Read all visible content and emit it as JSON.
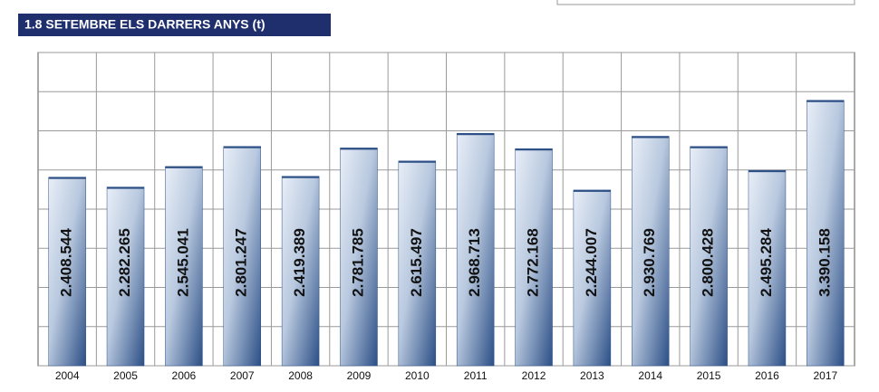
{
  "chart_data": {
    "type": "bar",
    "title": "1.8 SETEMBRE ELS DARRERS ANYS (t)",
    "categories": [
      "2004",
      "2005",
      "2006",
      "2007",
      "2008",
      "2009",
      "2010",
      "2011",
      "2012",
      "2013",
      "2014",
      "2015",
      "2016",
      "2017"
    ],
    "values": [
      2408544,
      2282265,
      2545041,
      2801247,
      2419389,
      2781785,
      2615497,
      2968713,
      2772168,
      2244007,
      2930769,
      2800428,
      2495284,
      3390158
    ],
    "value_labels": [
      "2.408.544",
      "2.282.265",
      "2.545.041",
      "2.801.247",
      "2.419.389",
      "2.781.785",
      "2.615.497",
      "2.968.713",
      "2.772.168",
      "2.244.007",
      "2.930.769",
      "2.800.428",
      "2.495.284",
      "3.390.158"
    ],
    "color": "#2c4f86",
    "ylim": [
      0,
      4000000
    ],
    "yticks": [
      0,
      500000,
      1000000,
      1500000,
      2000000,
      2500000,
      3000000,
      3500000,
      4000000
    ],
    "ytick_labels": false,
    "grid": true
  }
}
